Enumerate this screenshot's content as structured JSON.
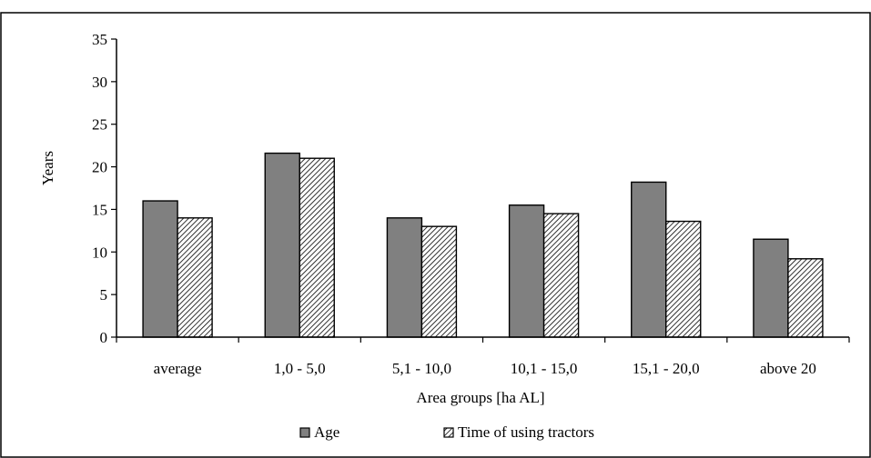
{
  "chart_data": {
    "type": "bar",
    "title": "",
    "xlabel": "Area groups [ha AL]",
    "ylabel": "Years",
    "ylim": [
      0,
      35
    ],
    "yticks": [
      0,
      5,
      10,
      15,
      20,
      25,
      30,
      35
    ],
    "categories": [
      "average",
      "1,0 - 5,0",
      "5,1 - 10,0",
      "10,1 - 15,0",
      "15,1 - 20,0",
      "above 20"
    ],
    "series": [
      {
        "name": "Age",
        "values": [
          16.0,
          21.6,
          14.0,
          15.5,
          18.2,
          11.5
        ],
        "color": "#808080",
        "pattern": "solid"
      },
      {
        "name": "Time of using tractors",
        "values": [
          14.0,
          21.0,
          13.0,
          14.5,
          13.6,
          9.2
        ],
        "color": "#ffffff",
        "pattern": "hatch"
      }
    ],
    "grid": false,
    "legend_position": "bottom"
  }
}
